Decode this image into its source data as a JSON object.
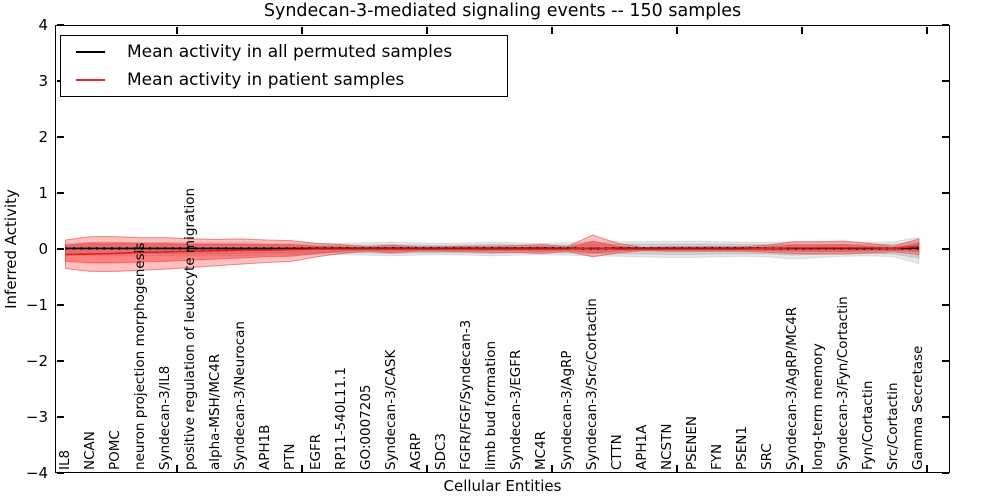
{
  "title": "Syndecan-3-mediated signaling events -- 150 samples",
  "legend": {
    "entries": [
      {
        "label": "Mean activity in all permuted samples",
        "color": "#000000"
      },
      {
        "label": "Mean activity in patient samples",
        "color": "#ee2222"
      }
    ]
  },
  "axes": {
    "ylabel": "Inferred Activity",
    "xlabel": "Cellular Entities",
    "yticks": [
      4,
      3,
      2,
      1,
      0,
      -1,
      -2,
      -3,
      -4
    ],
    "ytick_labels": [
      "4",
      "3",
      "2",
      "1",
      "0",
      "−1",
      "−2",
      "−3",
      "−4"
    ]
  },
  "chart_data": {
    "type": "line",
    "title": "Syndecan-3-mediated signaling events -- 150 samples",
    "xlabel": "Cellular Entities",
    "ylabel": "Inferred Activity",
    "ylim": [
      -4,
      4
    ],
    "grid": false,
    "legend_position": "upper left",
    "categories": [
      "IL8",
      "NCAN",
      "POMC",
      "neuron projection morphogenesis",
      "Syndecan-3/IL8",
      "positive regulation of leukocyte migration",
      "alpha-MSH/MC4R",
      "Syndecan-3/Neurocan",
      "APH1B",
      "PTN",
      "EGFR",
      "RP11-540L11.1",
      "GO:0007205",
      "Syndecan-3/CASK",
      "AGRP",
      "SDC3",
      "FGFR/FGF/Syndecan-3",
      "limb bud formation",
      "Syndecan-3/EGFR",
      "MC4R",
      "Syndecan-3/AgRP",
      "Syndecan-3/Src/Cortactin",
      "CTTN",
      "APH1A",
      "NCSTN",
      "PSENEN",
      "FYN",
      "PSEN1",
      "SRC",
      "Syndecan-3/AgRP/MC4R",
      "long-term memory",
      "Syndecan-3/Fyn/Cortactin",
      "Fyn/Cortactin",
      "Src/Cortactin",
      "Gamma Secretase"
    ],
    "series": [
      {
        "name": "Mean activity in all permuted samples",
        "color": "#000000",
        "style": "solid-with-dots",
        "values": [
          0.01,
          0.01,
          0.01,
          0.01,
          0.01,
          0.01,
          0.01,
          0.01,
          0.01,
          0.01,
          0.01,
          0.01,
          0.01,
          0.01,
          0.01,
          0.01,
          0.01,
          0.01,
          0.01,
          0.01,
          0.01,
          0.01,
          0.01,
          0.01,
          0.01,
          0.01,
          0.01,
          0.01,
          0.01,
          0.01,
          0.01,
          0.01,
          0.01,
          0.01,
          0.01
        ]
      },
      {
        "name": "Mean activity in patient samples",
        "color": "#e02020",
        "style": "solid",
        "values": [
          -0.1,
          -0.09,
          -0.08,
          -0.06,
          -0.05,
          -0.04,
          -0.03,
          -0.02,
          -0.02,
          -0.01,
          0,
          0,
          0,
          0,
          0,
          0,
          0,
          0,
          0,
          0,
          0,
          0.02,
          0,
          0,
          0,
          0,
          0,
          0,
          0.01,
          0.02,
          0.02,
          0.02,
          0.02,
          0.01,
          0.05
        ]
      }
    ],
    "bands": [
      {
        "name": "permuted-spread-outer",
        "color": "rgba(110,110,110,0.16)",
        "edge": "rgba(110,110,110,0.18)",
        "upper": [
          0.1,
          0.12,
          0.12,
          0.12,
          0.12,
          0.12,
          0.12,
          0.12,
          0.11,
          0.11,
          0.1,
          0.1,
          0.11,
          0.12,
          0.11,
          0.1,
          0.11,
          0.12,
          0.11,
          0.1,
          0.11,
          0.12,
          0.13,
          0.13,
          0.14,
          0.14,
          0.13,
          0.12,
          0.12,
          0.13,
          0.13,
          0.12,
          0.12,
          0.13,
          0.21
        ],
        "lower": [
          -0.1,
          -0.12,
          -0.12,
          -0.12,
          -0.12,
          -0.12,
          -0.12,
          -0.12,
          -0.11,
          -0.11,
          -0.1,
          -0.1,
          -0.11,
          -0.12,
          -0.11,
          -0.1,
          -0.11,
          -0.12,
          -0.11,
          -0.1,
          -0.11,
          -0.12,
          -0.13,
          -0.14,
          -0.15,
          -0.15,
          -0.14,
          -0.13,
          -0.14,
          -0.18,
          -0.15,
          -0.13,
          -0.12,
          -0.14,
          -0.26
        ]
      },
      {
        "name": "permuted-spread-inner",
        "color": "rgba(110,110,110,0.20)",
        "edge": "rgba(110,110,110,0.22)",
        "upper": [
          0.07,
          0.08,
          0.08,
          0.08,
          0.08,
          0.08,
          0.08,
          0.08,
          0.07,
          0.07,
          0.065,
          0.065,
          0.07,
          0.08,
          0.07,
          0.065,
          0.07,
          0.08,
          0.07,
          0.065,
          0.07,
          0.08,
          0.085,
          0.085,
          0.09,
          0.09,
          0.085,
          0.08,
          0.08,
          0.085,
          0.085,
          0.08,
          0.08,
          0.085,
          0.13
        ],
        "lower": [
          -0.07,
          -0.08,
          -0.08,
          -0.08,
          -0.08,
          -0.08,
          -0.08,
          -0.08,
          -0.07,
          -0.07,
          -0.065,
          -0.065,
          -0.07,
          -0.08,
          -0.07,
          -0.065,
          -0.07,
          -0.08,
          -0.07,
          -0.065,
          -0.07,
          -0.08,
          -0.085,
          -0.09,
          -0.095,
          -0.095,
          -0.09,
          -0.085,
          -0.09,
          -0.11,
          -0.095,
          -0.085,
          -0.08,
          -0.09,
          -0.16
        ]
      },
      {
        "name": "patient-spread-outer",
        "color": "rgba(255,45,45,0.30)",
        "edge": "rgba(225,55,55,0.55)",
        "upper": [
          0.16,
          0.22,
          0.22,
          0.2,
          0.2,
          0.18,
          0.17,
          0.18,
          0.16,
          0.15,
          0.1,
          0.08,
          0.04,
          0.07,
          0.04,
          0.04,
          0.05,
          0.05,
          0.06,
          0.08,
          0.04,
          0.25,
          0.1,
          0.03,
          0.04,
          0.04,
          0.04,
          0.04,
          0.07,
          0.13,
          0.13,
          0.14,
          0.1,
          0.05,
          0.18
        ],
        "lower": [
          -0.35,
          -0.4,
          -0.4,
          -0.38,
          -0.36,
          -0.33,
          -0.3,
          -0.27,
          -0.24,
          -0.22,
          -0.14,
          -0.08,
          -0.04,
          -0.07,
          -0.04,
          -0.04,
          -0.05,
          -0.06,
          -0.06,
          -0.08,
          -0.04,
          -0.14,
          -0.07,
          -0.03,
          -0.04,
          -0.04,
          -0.04,
          -0.04,
          -0.06,
          -0.08,
          -0.09,
          -0.09,
          -0.07,
          -0.05,
          -0.1
        ]
      },
      {
        "name": "patient-spread-inner",
        "color": "rgba(250,35,35,0.40)",
        "edge": "rgba(235,45,45,0.45)",
        "upper": [
          0.07,
          0.11,
          0.11,
          0.1,
          0.1,
          0.09,
          0.09,
          0.09,
          0.08,
          0.08,
          0.05,
          0.04,
          0.02,
          0.04,
          0.02,
          0.02,
          0.025,
          0.025,
          0.03,
          0.04,
          0.02,
          0.14,
          0.05,
          0.015,
          0.02,
          0.02,
          0.02,
          0.02,
          0.04,
          0.07,
          0.07,
          0.08,
          0.05,
          0.025,
          0.1
        ],
        "lower": [
          -0.22,
          -0.25,
          -0.25,
          -0.23,
          -0.22,
          -0.2,
          -0.18,
          -0.16,
          -0.14,
          -0.13,
          -0.08,
          -0.04,
          -0.02,
          -0.04,
          -0.02,
          -0.02,
          -0.025,
          -0.03,
          -0.03,
          -0.04,
          -0.02,
          -0.07,
          -0.035,
          -0.015,
          -0.02,
          -0.02,
          -0.02,
          -0.02,
          -0.03,
          -0.04,
          -0.045,
          -0.045,
          -0.035,
          -0.025,
          -0.05
        ]
      }
    ]
  }
}
